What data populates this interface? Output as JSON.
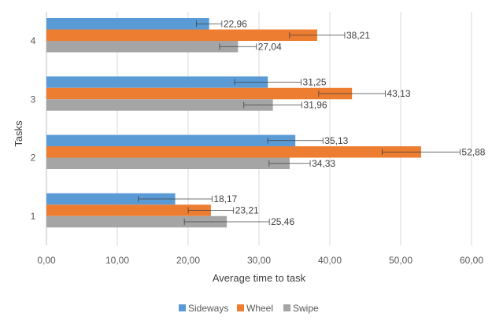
{
  "chart_data": {
    "type": "bar",
    "orientation": "horizontal",
    "xlabel": "Average time to task",
    "ylabel": "Tasks",
    "xlim": [
      0,
      60
    ],
    "xticks": [
      "0,00",
      "10,00",
      "20,00",
      "30,00",
      "40,00",
      "50,00",
      "60,00"
    ],
    "categories": [
      "1",
      "2",
      "3",
      "4"
    ],
    "grid": true,
    "legend_position": "bottom",
    "series": [
      {
        "name": "Sideways",
        "color": "#5B9BD5",
        "values": [
          18.17,
          35.13,
          31.25,
          22.96
        ],
        "labels": [
          "18,17",
          "35,13",
          "31,25",
          "22,96"
        ],
        "errors": [
          5.2,
          3.9,
          4.7,
          1.8
        ]
      },
      {
        "name": "Wheel",
        "color": "#ED7D31",
        "values": [
          23.21,
          52.88,
          43.13,
          38.21
        ],
        "labels": [
          "23,21",
          "52,88",
          "43,13",
          "38,21"
        ],
        "errors": [
          3.2,
          5.5,
          4.7,
          3.9
        ]
      },
      {
        "name": "Swipe",
        "color": "#A5A5A5",
        "values": [
          25.46,
          34.33,
          31.96,
          27.04
        ],
        "labels": [
          "25,46",
          "34,33",
          "31,96",
          "27,04"
        ],
        "errors": [
          6.0,
          2.9,
          4.1,
          2.6
        ]
      }
    ]
  }
}
